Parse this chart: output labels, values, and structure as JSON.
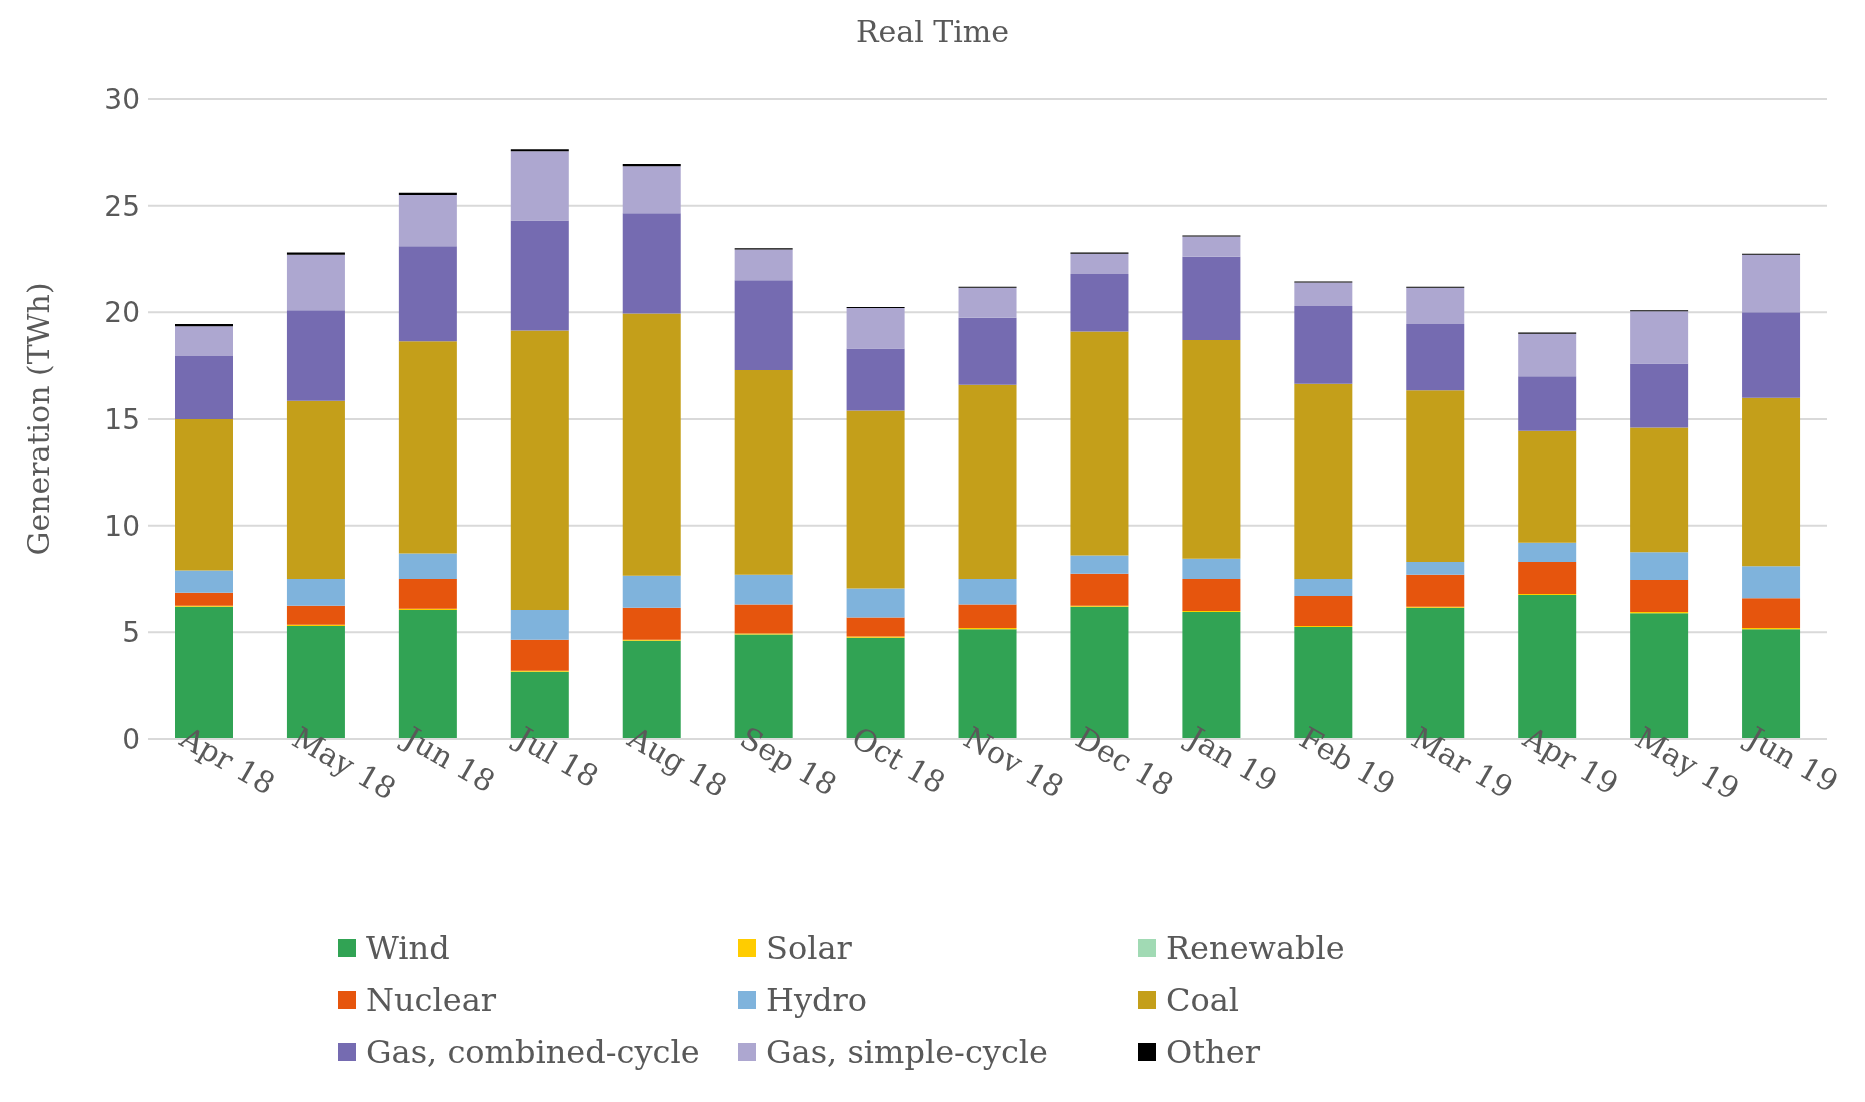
{
  "chart_data": {
    "type": "bar",
    "title": "Real Time",
    "ylabel": "Generation (TWh)",
    "stacked": true,
    "grid": "y",
    "legend": "bottom",
    "categories": [
      "Apr 18",
      "May 18",
      "Jun 18",
      "Jul 18",
      "Aug 18",
      "Sep 18",
      "Oct 18",
      "Nov 18",
      "Dec 18",
      "Jan 19",
      "Feb 19",
      "Mar 19",
      "Apr 19",
      "May 19",
      "Jun 19"
    ],
    "ylim": [
      0,
      30
    ],
    "yticks": [
      0,
      5,
      10,
      15,
      20,
      25,
      30
    ],
    "series": [
      {
        "name": "Wind",
        "color": "#31a354",
        "values": [
          6.2,
          5.3,
          6.05,
          3.15,
          4.6,
          4.9,
          4.75,
          5.15,
          6.2,
          5.95,
          5.25,
          6.15,
          6.75,
          5.9,
          5.15
        ]
      },
      {
        "name": "Solar",
        "color": "#ffcc00",
        "values": [
          0.05,
          0.05,
          0.05,
          0.05,
          0.05,
          0.05,
          0.05,
          0.05,
          0.05,
          0.05,
          0.05,
          0.05,
          0.05,
          0.05,
          0.05
        ]
      },
      {
        "name": "Renewable",
        "color": "#a1dab4",
        "values": [
          0,
          0,
          0,
          0,
          0,
          0,
          0,
          0,
          0,
          0,
          0,
          0,
          0,
          0,
          0
        ]
      },
      {
        "name": "Nuclear",
        "color": "#e6550d",
        "values": [
          0.6,
          0.9,
          1.4,
          1.45,
          1.5,
          1.35,
          0.9,
          1.1,
          1.5,
          1.5,
          1.4,
          1.5,
          1.5,
          1.5,
          1.4
        ]
      },
      {
        "name": "Hydro",
        "color": "#7fb3dc",
        "values": [
          1.05,
          1.25,
          1.2,
          1.4,
          1.5,
          1.4,
          1.35,
          1.2,
          0.85,
          0.95,
          0.8,
          0.6,
          0.9,
          1.3,
          1.5
        ]
      },
      {
        "name": "Coal",
        "color": "#c49f1a",
        "values": [
          7.1,
          8.35,
          9.95,
          13.1,
          12.3,
          9.6,
          8.35,
          9.1,
          10.5,
          10.25,
          9.15,
          8.05,
          5.25,
          5.85,
          7.9
        ]
      },
      {
        "name": "Gas, combined-cycle",
        "color": "#756bb1",
        "values": [
          2.95,
          4.25,
          4.45,
          5.15,
          4.7,
          4.2,
          2.9,
          3.15,
          2.7,
          3.9,
          3.65,
          3.1,
          2.55,
          3.0,
          4.0
        ]
      },
      {
        "name": "Gas, simple-cycle",
        "color": "#ada7d0",
        "values": [
          1.4,
          2.6,
          2.4,
          3.25,
          2.2,
          1.45,
          1.9,
          1.4,
          0.95,
          0.95,
          1.1,
          1.7,
          2.0,
          2.45,
          2.7
        ]
      },
      {
        "name": "Other",
        "color": "#000000",
        "values": [
          0.1,
          0.1,
          0.1,
          0.1,
          0.1,
          0.05,
          0.05,
          0.05,
          0.05,
          0.05,
          0.05,
          0.05,
          0.05,
          0.05,
          0.05
        ]
      }
    ]
  }
}
